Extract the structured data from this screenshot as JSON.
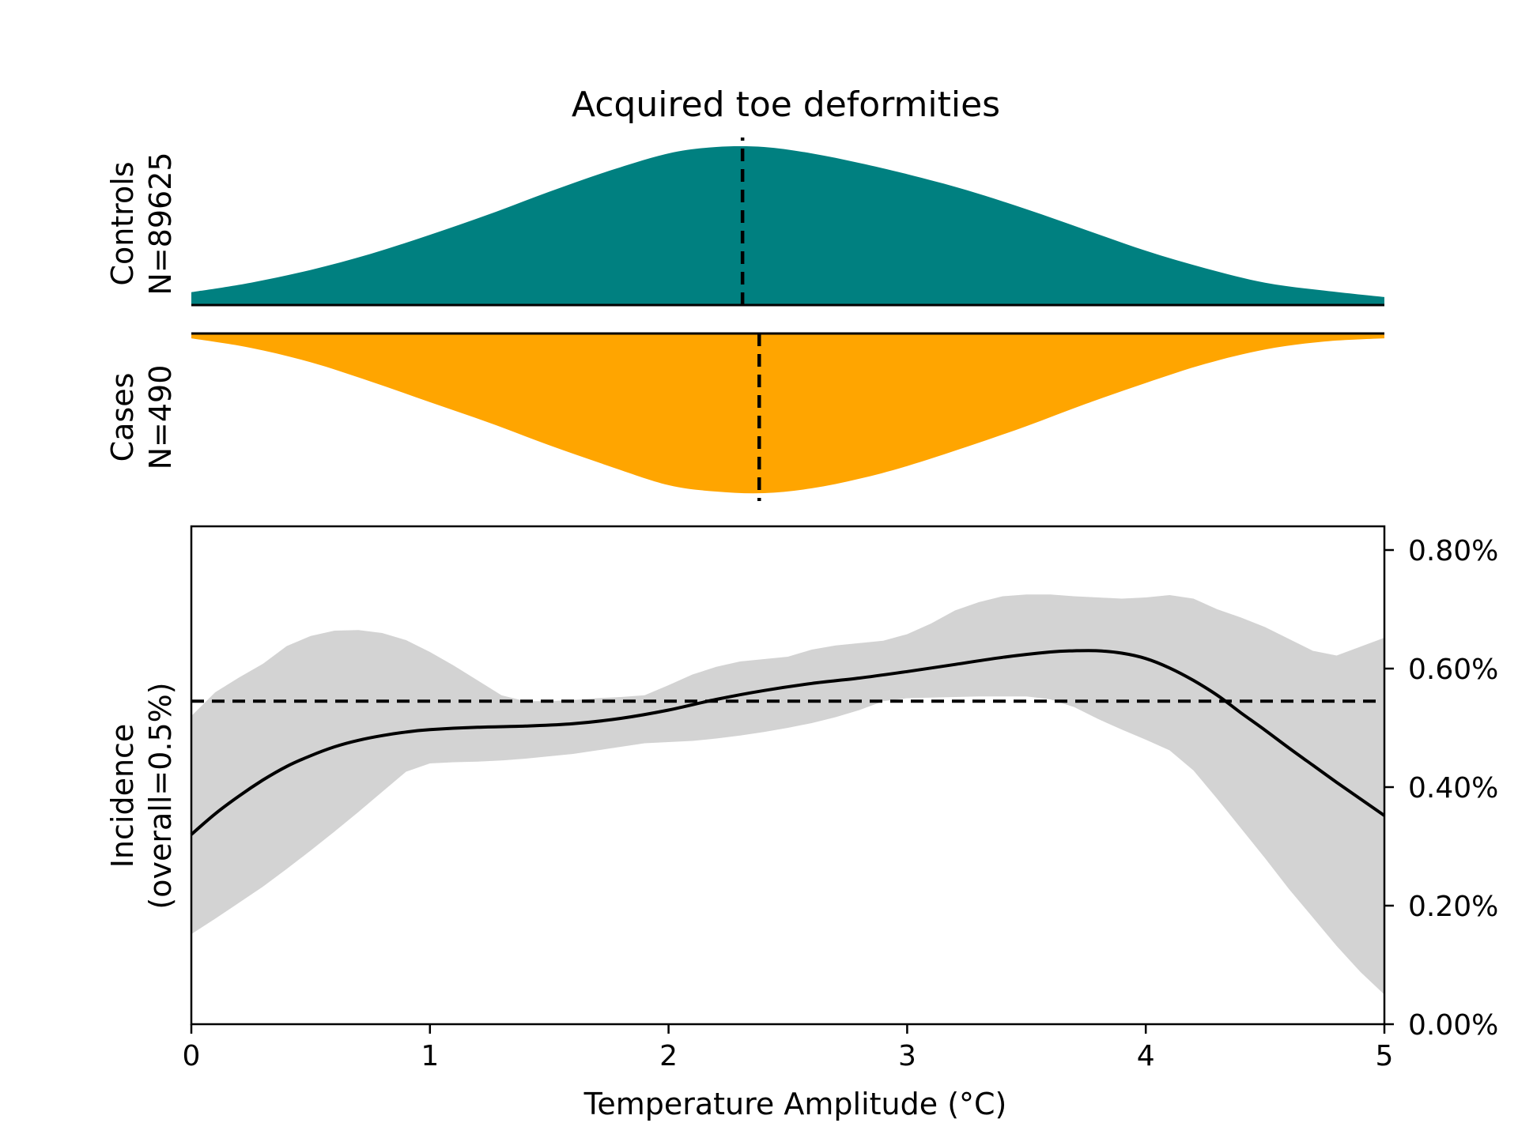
{
  "title": "Acquired toe deformities",
  "colors": {
    "controls": "#008080",
    "cases": "#FFA500",
    "ci_band": "#D3D3D3",
    "line": "#000000"
  },
  "chart_data": [
    {
      "type": "area",
      "panel": "controls-density",
      "label_line1": "Controls",
      "label_line2": "N=89625",
      "x": [
        0,
        0.25,
        0.5,
        0.75,
        1,
        1.25,
        1.5,
        1.75,
        2,
        2.2,
        2.4,
        2.6,
        2.8,
        3,
        3.25,
        3.5,
        3.75,
        4,
        4.25,
        4.5,
        4.75,
        5
      ],
      "density": [
        0.08,
        0.14,
        0.22,
        0.32,
        0.44,
        0.57,
        0.71,
        0.84,
        0.95,
        0.99,
        0.99,
        0.95,
        0.89,
        0.82,
        0.72,
        0.6,
        0.47,
        0.34,
        0.23,
        0.14,
        0.09,
        0.05
      ],
      "median": 2.31
    },
    {
      "type": "area",
      "panel": "cases-density",
      "label_line1": "Cases",
      "label_line2": "N=490",
      "x": [
        0,
        0.25,
        0.5,
        0.75,
        1,
        1.25,
        1.5,
        1.75,
        2,
        2.2,
        2.4,
        2.6,
        2.8,
        3,
        3.25,
        3.5,
        3.75,
        4,
        4.25,
        4.5,
        4.75,
        5
      ],
      "density": [
        0.03,
        0.09,
        0.18,
        0.3,
        0.43,
        0.56,
        0.7,
        0.83,
        0.95,
        0.99,
        1.0,
        0.97,
        0.91,
        0.83,
        0.71,
        0.58,
        0.44,
        0.31,
        0.19,
        0.1,
        0.05,
        0.03
      ],
      "median": 2.38
    },
    {
      "type": "line",
      "panel": "incidence",
      "xlabel": "Temperature Amplitude (°C)",
      "ylabel_line1": "Incidence",
      "ylabel_line2": "(overall=0.5%)",
      "xlim": [
        0,
        5
      ],
      "ylim": [
        0,
        0.84
      ],
      "xticks": [
        0,
        1,
        2,
        3,
        4,
        5
      ],
      "xtick_labels": [
        "0",
        "1",
        "2",
        "3",
        "4",
        "5"
      ],
      "yticks": [
        0,
        0.2,
        0.4,
        0.6,
        0.8
      ],
      "ytick_labels": [
        "0.00%",
        "0.20%",
        "0.40%",
        "0.60%",
        "0.80%"
      ],
      "y_axis_side": "right",
      "overall_line": 0.545,
      "series": [
        {
          "x": [
            0,
            0.1,
            0.2,
            0.3,
            0.4,
            0.5,
            0.6,
            0.7,
            0.8,
            0.9,
            1.0,
            1.2,
            1.4,
            1.6,
            1.8,
            2.0,
            2.2,
            2.4,
            2.6,
            2.8,
            3.0,
            3.2,
            3.4,
            3.6,
            3.7,
            3.8,
            3.9,
            4.0,
            4.1,
            4.2,
            4.3,
            4.4,
            4.5,
            4.6,
            4.7,
            4.8,
            4.9,
            5.0
          ],
          "values": [
            0.32,
            0.355,
            0.385,
            0.412,
            0.435,
            0.453,
            0.468,
            0.479,
            0.487,
            0.493,
            0.497,
            0.501,
            0.503,
            0.507,
            0.516,
            0.53,
            0.548,
            0.563,
            0.575,
            0.584,
            0.595,
            0.607,
            0.619,
            0.628,
            0.63,
            0.63,
            0.626,
            0.617,
            0.601,
            0.58,
            0.555,
            0.525,
            0.496,
            0.466,
            0.437,
            0.408,
            0.38,
            0.352
          ]
        }
      ],
      "ci_band": {
        "x": [
          0,
          0.1,
          0.2,
          0.3,
          0.4,
          0.5,
          0.6,
          0.7,
          0.8,
          0.9,
          1.0,
          1.1,
          1.2,
          1.3,
          1.4,
          1.5,
          1.6,
          1.7,
          1.8,
          1.9,
          2.0,
          2.1,
          2.2,
          2.3,
          2.4,
          2.5,
          2.6,
          2.7,
          2.8,
          2.9,
          3.0,
          3.1,
          3.2,
          3.3,
          3.4,
          3.5,
          3.6,
          3.7,
          3.8,
          3.9,
          4.0,
          4.1,
          4.2,
          4.3,
          4.4,
          4.5,
          4.6,
          4.7,
          4.8,
          4.9,
          5.0
        ],
        "upper": [
          0.52,
          0.56,
          0.585,
          0.608,
          0.638,
          0.655,
          0.664,
          0.665,
          0.66,
          0.648,
          0.628,
          0.605,
          0.58,
          0.555,
          0.545,
          0.545,
          0.547,
          0.55,
          0.552,
          0.555,
          0.572,
          0.59,
          0.603,
          0.612,
          0.616,
          0.62,
          0.632,
          0.639,
          0.643,
          0.647,
          0.658,
          0.676,
          0.698,
          0.712,
          0.722,
          0.725,
          0.725,
          0.722,
          0.72,
          0.718,
          0.72,
          0.724,
          0.718,
          0.7,
          0.686,
          0.67,
          0.65,
          0.63,
          0.622,
          0.637,
          0.652
        ],
        "lower": [
          0.152,
          0.178,
          0.205,
          0.232,
          0.262,
          0.293,
          0.325,
          0.358,
          0.392,
          0.426,
          0.44,
          0.442,
          0.443,
          0.445,
          0.448,
          0.452,
          0.456,
          0.462,
          0.468,
          0.474,
          0.476,
          0.478,
          0.482,
          0.487,
          0.493,
          0.5,
          0.508,
          0.518,
          0.53,
          0.545,
          0.55,
          0.551,
          0.552,
          0.553,
          0.553,
          0.553,
          0.548,
          0.535,
          0.515,
          0.497,
          0.48,
          0.462,
          0.428,
          0.38,
          0.33,
          0.28,
          0.228,
          0.18,
          0.132,
          0.088,
          0.05
        ]
      }
    }
  ]
}
